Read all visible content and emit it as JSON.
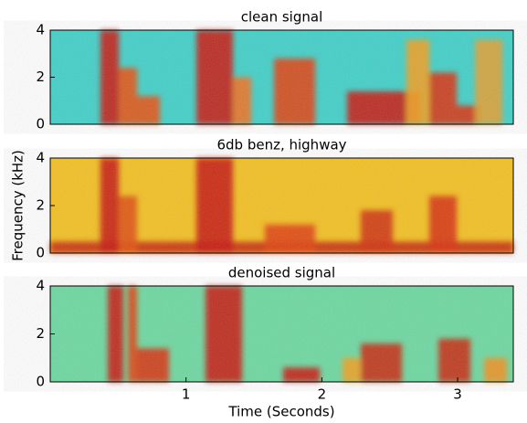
{
  "chart_data": [
    {
      "type": "spectrogram",
      "title": "clean signal",
      "xlim": [
        0,
        3.41
      ],
      "ylim": [
        0,
        4
      ],
      "yticks": [
        0,
        2,
        4
      ]
    },
    {
      "type": "spectrogram",
      "title": "6db benz, highway",
      "xlim": [
        0,
        3.41
      ],
      "ylim": [
        0,
        4
      ],
      "yticks": [
        0,
        2,
        4
      ],
      "ylabel": "Frequency (kHz)"
    },
    {
      "type": "spectrogram",
      "title": "denoised signal",
      "xlim": [
        0,
        3.41
      ],
      "ylim": [
        0,
        4
      ],
      "yticks": [
        0,
        2,
        4
      ],
      "xticks": [
        1,
        2,
        3
      ],
      "xlabel": "Time (Seconds)"
    }
  ]
}
